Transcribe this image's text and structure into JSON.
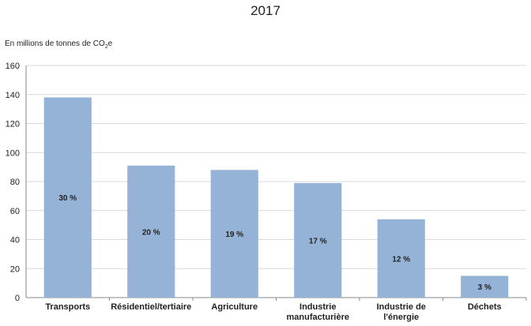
{
  "chart_data": {
    "type": "bar",
    "title": "2017",
    "ylabel_prefix": "En millions de tonnes de CO",
    "ylabel_sub": "2",
    "ylabel_suffix": "e",
    "xlabel": "",
    "ylim": [
      0,
      160
    ],
    "yticks": [
      0,
      20,
      40,
      60,
      80,
      100,
      120,
      140,
      160
    ],
    "grid": true,
    "bar_color": "#95B3D7",
    "categories": [
      [
        "Transports"
      ],
      [
        "Résidentiel/tertiaire"
      ],
      [
        "Agriculture"
      ],
      [
        "Industrie",
        "manufacturière"
      ],
      [
        "Industrie de",
        "l'énergie"
      ],
      [
        "Déchets"
      ]
    ],
    "values": [
      138,
      91,
      88,
      79,
      54,
      15
    ],
    "data_labels": [
      "30 %",
      "20 %",
      "19 %",
      "17 %",
      "12 %",
      "3 %"
    ]
  }
}
